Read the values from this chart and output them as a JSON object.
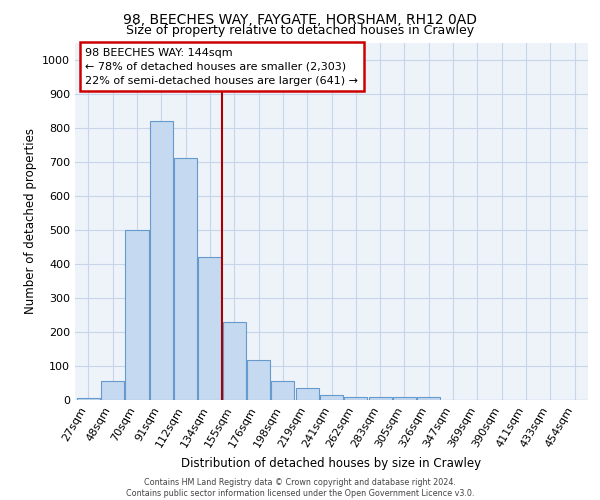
{
  "title1": "98, BEECHES WAY, FAYGATE, HORSHAM, RH12 0AD",
  "title2": "Size of property relative to detached houses in Crawley",
  "xlabel": "Distribution of detached houses by size in Crawley",
  "ylabel": "Number of detached properties",
  "categories": [
    "27sqm",
    "48sqm",
    "70sqm",
    "91sqm",
    "112sqm",
    "134sqm",
    "155sqm",
    "176sqm",
    "198sqm",
    "219sqm",
    "241sqm",
    "262sqm",
    "283sqm",
    "305sqm",
    "326sqm",
    "347sqm",
    "369sqm",
    "390sqm",
    "411sqm",
    "433sqm",
    "454sqm"
  ],
  "values": [
    7,
    57,
    500,
    820,
    710,
    420,
    230,
    117,
    57,
    35,
    15,
    10,
    10,
    10,
    8,
    0,
    0,
    0,
    0,
    0,
    0
  ],
  "bar_color": "#c5d9f0",
  "bar_edge_color": "#6699cc",
  "annotation_title": "98 BEECHES WAY: 144sqm",
  "annotation_line1": "← 78% of detached houses are smaller (2,303)",
  "annotation_line2": "22% of semi-detached houses are larger (641) →",
  "annotation_box_color": "#ffffff",
  "annotation_box_edge": "#cc0000",
  "vline_pos": 5.5,
  "vline_color": "#aa0000",
  "ylim": [
    0,
    1050
  ],
  "yticks": [
    0,
    100,
    200,
    300,
    400,
    500,
    600,
    700,
    800,
    900,
    1000
  ],
  "footer_line1": "Contains HM Land Registry data © Crown copyright and database right 2024.",
  "footer_line2": "Contains public sector information licensed under the Open Government Licence v3.0.",
  "bg_color": "#eef3fa",
  "grid_color": "#c8d4e8",
  "fig_bg": "#ffffff"
}
